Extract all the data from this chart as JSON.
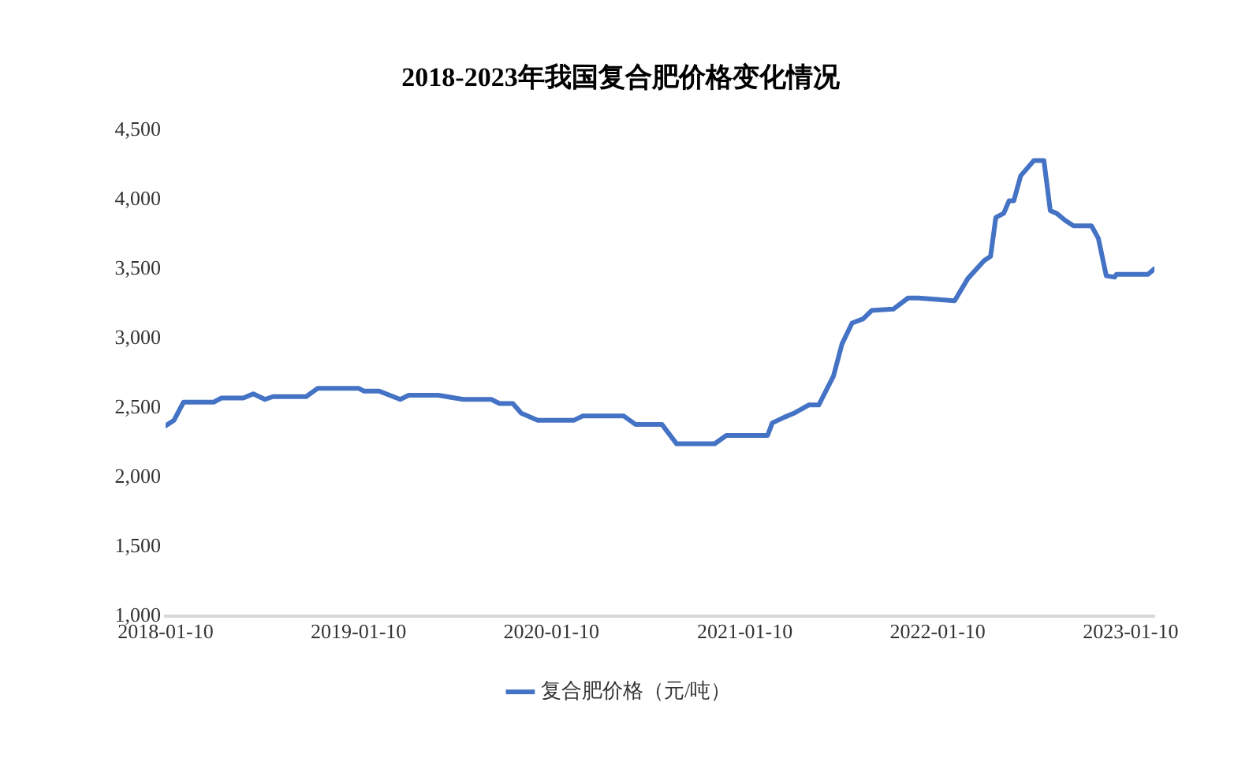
{
  "chart_data": {
    "type": "line",
    "title": "2018-2023年我国复合肥价格变化情况",
    "x": [
      "2018-01-10",
      "2018-01-26",
      "2018-02-13",
      "2018-04-11",
      "2018-04-26",
      "2018-06-06",
      "2018-06-25",
      "2018-07-17",
      "2018-08-01",
      "2018-10-03",
      "2018-10-25",
      "2019-01-10",
      "2019-01-20",
      "2019-02-18",
      "2019-03-30",
      "2019-04-15",
      "2019-06-10",
      "2019-07-27",
      "2019-09-18",
      "2019-10-04",
      "2019-10-29",
      "2019-11-14",
      "2019-12-15",
      "2020-02-22",
      "2020-03-09",
      "2020-05-26",
      "2020-06-17",
      "2020-08-06",
      "2020-09-03",
      "2020-11-14",
      "2020-12-06",
      "2021-02-22",
      "2021-03-03",
      "2021-03-25",
      "2021-04-13",
      "2021-05-11",
      "2021-05-30",
      "2021-06-27",
      "2021-07-13",
      "2021-08-01",
      "2021-08-22",
      "2021-09-07",
      "2021-10-18",
      "2021-11-15",
      "2021-12-04",
      "2022-02-11",
      "2022-03-08",
      "2022-04-08",
      "2022-04-20",
      "2022-04-30",
      "2022-05-15",
      "2022-05-25",
      "2022-06-03",
      "2022-06-16",
      "2022-07-11",
      "2022-07-30",
      "2022-08-11",
      "2022-08-23",
      "2022-09-08",
      "2022-09-24",
      "2022-10-28",
      "2022-11-10",
      "2022-11-25",
      "2022-12-11",
      "2022-12-14",
      "2023-02-12",
      "2023-02-24"
    ],
    "series": [
      {
        "name": "复合肥价格（元/吨）",
        "color": "#4472c4",
        "values": [
          2370,
          2410,
          2540,
          2540,
          2570,
          2570,
          2600,
          2560,
          2580,
          2580,
          2640,
          2640,
          2620,
          2620,
          2560,
          2590,
          2590,
          2560,
          2560,
          2530,
          2530,
          2460,
          2410,
          2410,
          2440,
          2440,
          2380,
          2380,
          2240,
          2240,
          2300,
          2300,
          2390,
          2430,
          2460,
          2520,
          2520,
          2730,
          2960,
          3110,
          3140,
          3200,
          3210,
          3290,
          3290,
          3270,
          3430,
          3560,
          3590,
          3870,
          3900,
          3990,
          3990,
          4170,
          4280,
          4280,
          3920,
          3900,
          3850,
          3810,
          3810,
          3720,
          3450,
          3440,
          3460,
          3460,
          3500
        ]
      }
    ],
    "xlim": [
      "2018-01-10",
      "2023-02-24"
    ],
    "xticks": [
      "2018-01-10",
      "2019-01-10",
      "2020-01-10",
      "2021-01-10",
      "2022-01-10",
      "2023-01-10"
    ],
    "ylim": [
      1000,
      4500
    ],
    "yticks": [
      {
        "value": 1000,
        "label": "1,000"
      },
      {
        "value": 1500,
        "label": "1,500"
      },
      {
        "value": 2000,
        "label": "2,000"
      },
      {
        "value": 2500,
        "label": "2,500"
      },
      {
        "value": 3000,
        "label": "3,000"
      },
      {
        "value": 3500,
        "label": "3,500"
      },
      {
        "value": 4000,
        "label": "4,000"
      },
      {
        "value": 4500,
        "label": "4,500"
      }
    ],
    "grid": false,
    "legend": "bottom",
    "marker": "none",
    "line_style": "solid"
  }
}
